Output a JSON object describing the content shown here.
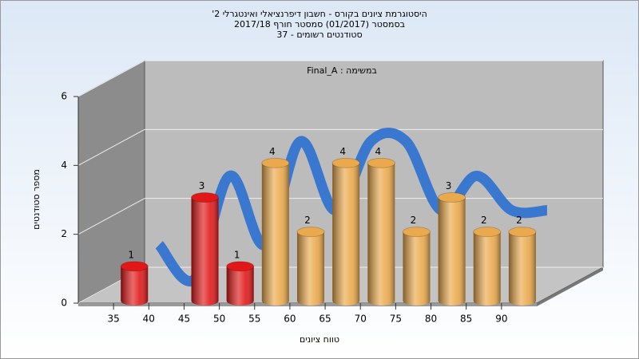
{
  "chart_data": {
    "type": "histogram",
    "title": "היסטוגרמת ציונים בקורס - חשבון דיפרנציאלי ואינטגרלי 2'",
    "subtitle": "בסמסטר  (01/2017)  סמסטר חורף 2017/18",
    "subtitle2": "סטודנטים רשומים - 37",
    "annotation": "במשימה : Final_A",
    "xlabel": "טווח ציונים",
    "ylabel": "מספר סטודנטים",
    "bins": [
      35,
      40,
      45,
      50,
      55,
      60,
      65,
      70,
      75,
      80,
      85,
      90,
      95
    ],
    "counts": [
      1,
      0,
      3,
      1,
      4,
      2,
      4,
      4,
      2,
      3,
      2,
      2
    ],
    "colors": [
      "#e01818",
      "#e01818",
      "#e01818",
      "#e01818",
      "#eaa94c",
      "#eaa94c",
      "#eaa94c",
      "#eaa94c",
      "#eaa94c",
      "#eaa94c",
      "#eaa94c",
      "#eaa94c"
    ],
    "line_color": "#3a78d0",
    "xlim": [
      30,
      95
    ],
    "xticks": [
      35,
      40,
      45,
      50,
      55,
      60,
      65,
      70,
      75,
      80,
      85,
      90
    ],
    "ylim": [
      0,
      6
    ],
    "yticks": [
      0,
      2,
      4,
      6
    ],
    "grid": true
  }
}
